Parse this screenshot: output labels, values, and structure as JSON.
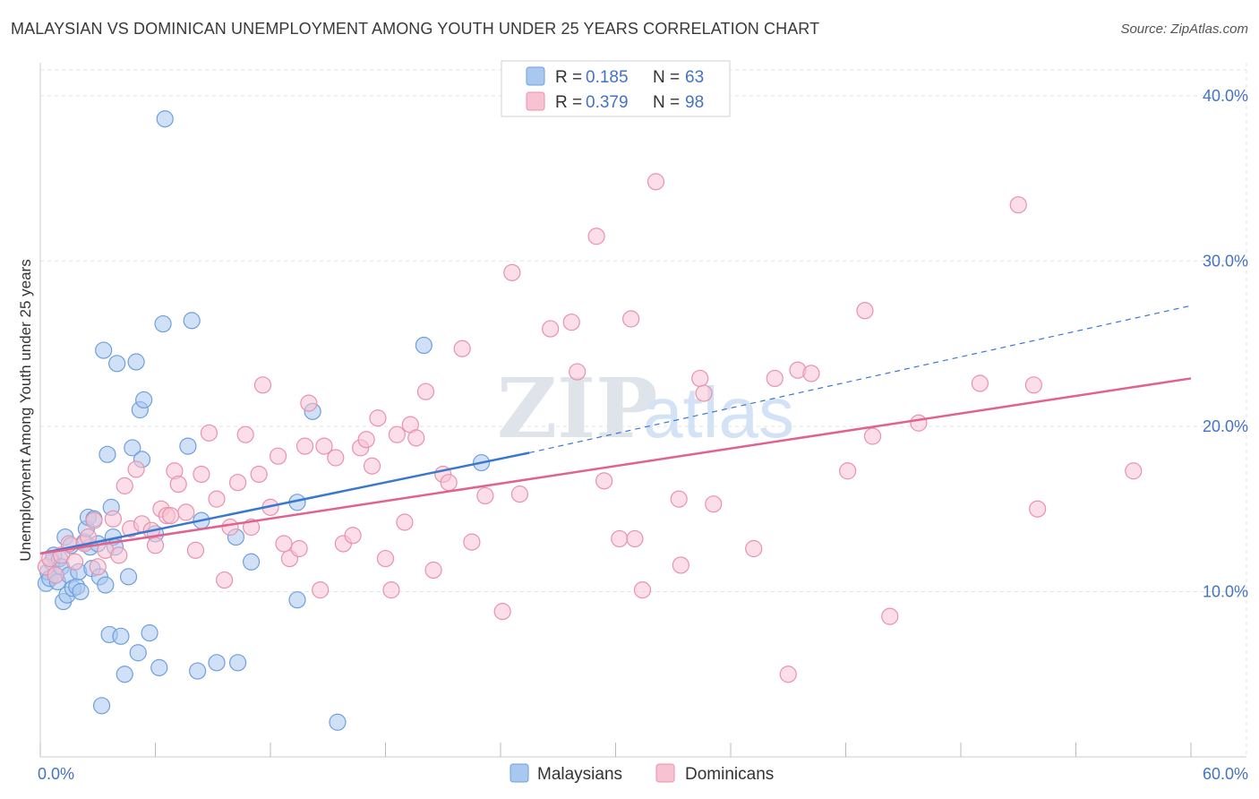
{
  "title": "MALAYSIAN VS DOMINICAN UNEMPLOYMENT AMONG YOUTH UNDER 25 YEARS CORRELATION CHART",
  "source": "Source: ZipAtlas.com",
  "watermark": {
    "left": "ZIP",
    "right": "atlas"
  },
  "colors": {
    "malaysians_fill": "#a9c8f0",
    "malaysians_stroke": "#6f9fdc",
    "malaysians_line": "#3a78d0",
    "dominicans_fill": "#f7c3d3",
    "dominicans_stroke": "#e892ad",
    "dominicans_line": "#e0628f",
    "tick": "#4472c4",
    "grid": "#e3e3e3"
  },
  "legend": {
    "r_label": "R =",
    "n_label": "N =",
    "rows": [
      {
        "r": "0.185",
        "n": "63"
      },
      {
        "r": "0.379",
        "n": "98"
      }
    ]
  },
  "chart_data": {
    "type": "scatter",
    "title": "MALAYSIAN VS DOMINICAN UNEMPLOYMENT AMONG YOUTH UNDER 25 YEARS CORRELATION CHART",
    "xlabel": "",
    "ylabel": "Unemployment Among Youth under 25 years",
    "xlim": [
      0,
      60
    ],
    "ylim": [
      0,
      42
    ],
    "x_tick_labels": [
      "0.0%",
      "60.0%"
    ],
    "y_ticks": [
      10,
      20,
      30,
      40
    ],
    "y_tick_labels": [
      "10.0%",
      "20.0%",
      "30.0%",
      "40.0%"
    ],
    "grid": true,
    "legend_position": "bottom",
    "series": [
      {
        "name": "Malaysians",
        "r": 0.185,
        "n": 63,
        "trend": {
          "x0": 0,
          "y0": 12.3,
          "x1": 25.5,
          "y1": 18.4,
          "dashed_to_x": 60,
          "dashed_to_y": 27.3
        },
        "points": [
          [
            0.3,
            10.5
          ],
          [
            0.4,
            11.2
          ],
          [
            0.5,
            10.8
          ],
          [
            0.6,
            11.8
          ],
          [
            0.7,
            12.2
          ],
          [
            0.8,
            11.0
          ],
          [
            0.9,
            10.6
          ],
          [
            1.0,
            12.0
          ],
          [
            1.1,
            11.5
          ],
          [
            1.2,
            9.4
          ],
          [
            1.3,
            13.3
          ],
          [
            1.4,
            9.8
          ],
          [
            1.5,
            11.0
          ],
          [
            1.6,
            12.8
          ],
          [
            1.7,
            10.2
          ],
          [
            1.9,
            10.3
          ],
          [
            2.0,
            11.2
          ],
          [
            2.1,
            10.0
          ],
          [
            2.3,
            13.0
          ],
          [
            2.4,
            13.8
          ],
          [
            2.5,
            14.5
          ],
          [
            2.6,
            12.7
          ],
          [
            2.7,
            11.4
          ],
          [
            2.8,
            14.4
          ],
          [
            3.0,
            12.9
          ],
          [
            3.1,
            10.9
          ],
          [
            3.3,
            24.6
          ],
          [
            3.4,
            10.4
          ],
          [
            3.5,
            18.3
          ],
          [
            3.6,
            7.4
          ],
          [
            3.7,
            15.1
          ],
          [
            3.8,
            13.3
          ],
          [
            3.9,
            12.7
          ],
          [
            4.0,
            23.8
          ],
          [
            4.2,
            7.3
          ],
          [
            4.4,
            5.0
          ],
          [
            4.6,
            10.9
          ],
          [
            4.8,
            18.7
          ],
          [
            5.0,
            23.9
          ],
          [
            5.1,
            6.3
          ],
          [
            5.2,
            21.0
          ],
          [
            5.3,
            18.0
          ],
          [
            5.4,
            21.6
          ],
          [
            5.7,
            7.5
          ],
          [
            6.0,
            13.5
          ],
          [
            6.2,
            5.4
          ],
          [
            6.4,
            26.2
          ],
          [
            6.5,
            38.6
          ],
          [
            7.7,
            18.8
          ],
          [
            7.9,
            26.4
          ],
          [
            8.2,
            5.2
          ],
          [
            8.4,
            14.3
          ],
          [
            9.2,
            5.7
          ],
          [
            10.3,
            5.7
          ],
          [
            10.2,
            13.3
          ],
          [
            11.0,
            11.8
          ],
          [
            13.4,
            15.4
          ],
          [
            13.4,
            9.5
          ],
          [
            14.2,
            20.9
          ],
          [
            15.5,
            2.1
          ],
          [
            20.0,
            24.9
          ],
          [
            23.0,
            17.8
          ],
          [
            3.2,
            3.1
          ]
        ]
      },
      {
        "name": "Dominicans",
        "r": 0.379,
        "n": 98,
        "trend": {
          "x0": 0,
          "y0": 12.3,
          "x1": 60,
          "y1": 22.9
        },
        "points": [
          [
            0.3,
            11.5
          ],
          [
            0.5,
            12.0
          ],
          [
            0.8,
            11.0
          ],
          [
            1.1,
            12.2
          ],
          [
            1.5,
            12.9
          ],
          [
            1.8,
            11.8
          ],
          [
            2.3,
            12.9
          ],
          [
            2.5,
            13.3
          ],
          [
            2.8,
            14.3
          ],
          [
            3.0,
            11.5
          ],
          [
            3.4,
            12.5
          ],
          [
            3.8,
            14.4
          ],
          [
            4.1,
            12.2
          ],
          [
            4.4,
            16.4
          ],
          [
            4.7,
            13.8
          ],
          [
            5.0,
            17.4
          ],
          [
            5.3,
            14.1
          ],
          [
            5.8,
            13.7
          ],
          [
            6.0,
            12.8
          ],
          [
            6.3,
            15.0
          ],
          [
            6.6,
            14.6
          ],
          [
            7.0,
            17.3
          ],
          [
            7.2,
            16.5
          ],
          [
            7.6,
            14.8
          ],
          [
            8.1,
            12.5
          ],
          [
            8.4,
            17.1
          ],
          [
            8.8,
            19.6
          ],
          [
            9.2,
            15.6
          ],
          [
            9.6,
            10.7
          ],
          [
            9.9,
            13.9
          ],
          [
            10.3,
            16.6
          ],
          [
            10.7,
            19.5
          ],
          [
            11.0,
            13.9
          ],
          [
            11.4,
            17.1
          ],
          [
            11.6,
            22.5
          ],
          [
            12.0,
            15.1
          ],
          [
            12.7,
            12.9
          ],
          [
            13.0,
            12.0
          ],
          [
            13.5,
            12.6
          ],
          [
            13.8,
            18.8
          ],
          [
            14.0,
            21.4
          ],
          [
            14.6,
            10.1
          ],
          [
            14.8,
            18.8
          ],
          [
            15.4,
            18.1
          ],
          [
            15.8,
            12.9
          ],
          [
            16.3,
            13.4
          ],
          [
            16.7,
            18.7
          ],
          [
            17.0,
            19.2
          ],
          [
            17.3,
            17.6
          ],
          [
            17.6,
            20.5
          ],
          [
            18.0,
            12.0
          ],
          [
            18.3,
            10.1
          ],
          [
            18.6,
            19.5
          ],
          [
            19.0,
            14.2
          ],
          [
            19.3,
            20.1
          ],
          [
            19.6,
            19.3
          ],
          [
            20.1,
            22.1
          ],
          [
            20.5,
            11.3
          ],
          [
            21.0,
            17.1
          ],
          [
            21.3,
            16.6
          ],
          [
            22.0,
            24.7
          ],
          [
            22.5,
            13.0
          ],
          [
            23.2,
            15.8
          ],
          [
            24.1,
            8.8
          ],
          [
            24.6,
            29.3
          ],
          [
            25.0,
            15.9
          ],
          [
            26.6,
            25.9
          ],
          [
            27.7,
            26.3
          ],
          [
            28.0,
            23.3
          ],
          [
            29.0,
            31.5
          ],
          [
            29.4,
            16.7
          ],
          [
            30.2,
            13.2
          ],
          [
            30.8,
            26.5
          ],
          [
            31.0,
            13.2
          ],
          [
            31.4,
            10.1
          ],
          [
            32.1,
            34.8
          ],
          [
            33.3,
            15.6
          ],
          [
            33.4,
            11.6
          ],
          [
            34.4,
            22.9
          ],
          [
            34.6,
            22.0
          ],
          [
            35.1,
            15.3
          ],
          [
            37.2,
            12.6
          ],
          [
            38.3,
            22.9
          ],
          [
            39.0,
            5.0
          ],
          [
            39.5,
            23.4
          ],
          [
            40.2,
            23.2
          ],
          [
            42.1,
            17.3
          ],
          [
            43.0,
            27.0
          ],
          [
            43.4,
            19.4
          ],
          [
            44.3,
            8.5
          ],
          [
            45.8,
            20.2
          ],
          [
            49.0,
            22.6
          ],
          [
            51.0,
            33.4
          ],
          [
            51.8,
            22.5
          ],
          [
            52.0,
            15.0
          ],
          [
            57.0,
            17.3
          ],
          [
            6.8,
            14.6
          ],
          [
            12.4,
            18.2
          ]
        ]
      }
    ]
  },
  "bottom_legend": [
    "Malaysians",
    "Dominicans"
  ]
}
